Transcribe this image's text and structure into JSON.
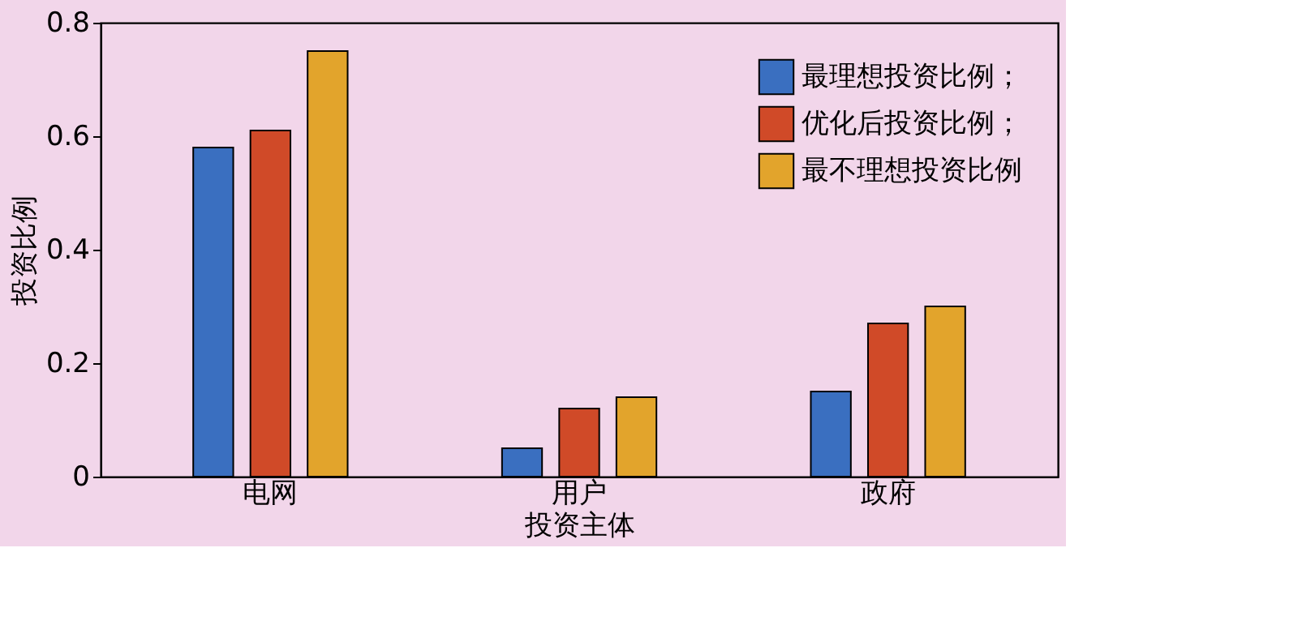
{
  "chart_data": {
    "type": "bar",
    "xlabel": "投资主体",
    "ylabel": "投资比例",
    "categories": [
      "电网",
      "用户",
      "政府"
    ],
    "series": [
      {
        "name": "最理想投资比例；",
        "color": "#3a6fc0",
        "values": [
          0.58,
          0.05,
          0.15
        ]
      },
      {
        "name": "优化后投资比例；",
        "color": "#d04a28",
        "values": [
          0.61,
          0.12,
          0.27
        ]
      },
      {
        "name": "最不理想投资比例",
        "color": "#e2a42c",
        "values": [
          0.75,
          0.14,
          0.3
        ]
      }
    ],
    "ylim": [
      0,
      0.8
    ],
    "yticks": [
      0,
      0.2,
      0.4,
      0.6,
      0.8
    ],
    "legend": "top right",
    "grid": false
  }
}
